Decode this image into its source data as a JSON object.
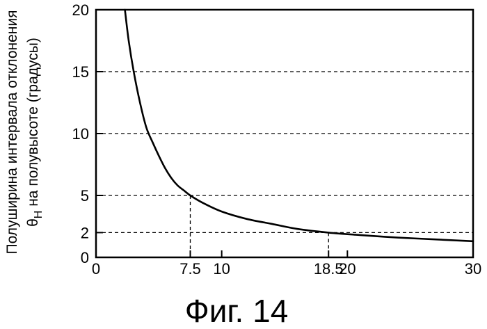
{
  "chart_data": {
    "type": "line",
    "caption": "Фиг. 14",
    "ylabel": {
      "line1": "Полуширина интервала отклонения",
      "line2_symbol": "θ",
      "line2_subscript": "H",
      "line2_rest": " на полувысоте (градусы)"
    },
    "xlim": [
      0,
      30
    ],
    "ylim": [
      0,
      20
    ],
    "x_ticks": [
      {
        "value": 0,
        "label": "0"
      },
      {
        "value": 7.5,
        "label": "7.5"
      },
      {
        "value": 10,
        "label": "10"
      },
      {
        "value": 18.5,
        "label": "18.5"
      },
      {
        "value": 20,
        "label": "20"
      },
      {
        "value": 30,
        "label": "30"
      }
    ],
    "y_ticks": [
      {
        "value": 0,
        "label": "0"
      },
      {
        "value": 2,
        "label": "2"
      },
      {
        "value": 5,
        "label": "5"
      },
      {
        "value": 10,
        "label": "10"
      },
      {
        "value": 15,
        "label": "15"
      },
      {
        "value": 20,
        "label": "20"
      }
    ],
    "grid": {
      "horizontal_dashed_at": [
        2,
        5,
        10,
        15
      ],
      "vertical_dashed_at": [
        7.5,
        18.5
      ]
    },
    "series": [
      {
        "color": "#000000",
        "x": [
          2.3,
          2.6,
          3.0,
          3.5,
          4.0,
          4.5,
          5.0,
          5.5,
          6.0,
          6.5,
          7.0,
          7.5,
          8.5,
          10,
          12,
          14,
          16,
          18.5,
          21,
          24,
          27,
          30
        ],
        "y": [
          20,
          17.5,
          15,
          12.5,
          10.5,
          9.3,
          8.2,
          7.2,
          6.4,
          5.8,
          5.4,
          5.0,
          4.4,
          3.7,
          3.1,
          2.7,
          2.3,
          2.0,
          1.8,
          1.6,
          1.45,
          1.3
        ]
      }
    ]
  }
}
